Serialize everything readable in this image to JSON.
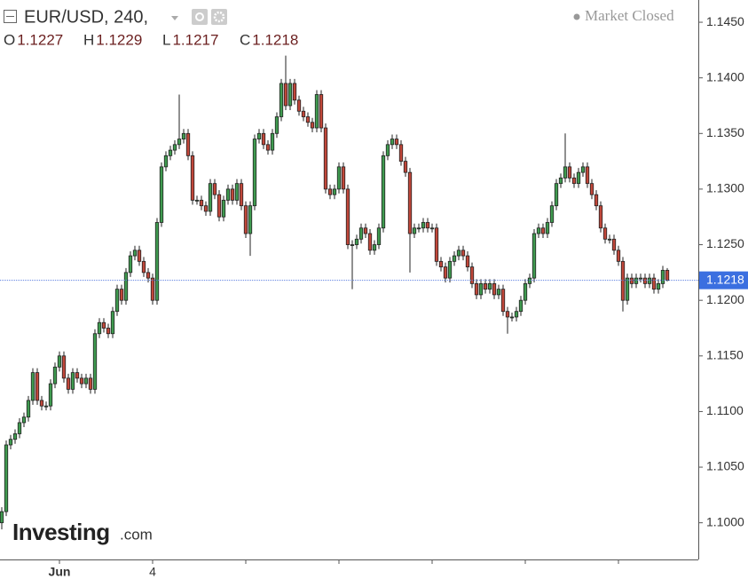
{
  "chart_data": {
    "type": "candlestick",
    "title": "EUR/USD, 240,",
    "status": "Market Closed",
    "brand": "Investing",
    "brand_suffix": ".com",
    "ohlc_labels": [
      "O",
      "H",
      "L",
      "C"
    ],
    "up_color": "#3f9a4f",
    "down_color": "#c0473a",
    "open": [
      1.1,
      1.101,
      1.107,
      1.1075,
      1.108,
      1.109,
      1.1095,
      1.111,
      1.1135,
      1.111,
      1.1105,
      1.1105,
      1.1125,
      1.114,
      1.115,
      1.113,
      1.112,
      1.1135,
      1.113,
      1.1125,
      1.113,
      1.112,
      1.117,
      1.118,
      1.1175,
      1.117,
      1.119,
      1.121,
      1.12,
      1.1225,
      1.124,
      1.1245,
      1.1235,
      1.1225,
      1.122,
      1.12,
      1.127,
      1.132,
      1.133,
      1.1335,
      1.134,
      1.1345,
      1.135,
      1.133,
      1.129,
      1.129,
      1.1285,
      1.128,
      1.1305,
      1.1295,
      1.1275,
      1.129,
      1.13,
      1.129,
      1.1305,
      1.1285,
      1.126,
      1.1285,
      1.1345,
      1.135,
      1.134,
      1.1335,
      1.135,
      1.1365,
      1.1395,
      1.1375,
      1.1395,
      1.138,
      1.137,
      1.1365,
      1.136,
      1.1355,
      1.1385,
      1.1355,
      1.13,
      1.1295,
      1.13,
      1.132,
      1.13,
      1.125,
      1.125,
      1.1255,
      1.1265,
      1.126,
      1.1245,
      1.125,
      1.1265,
      1.133,
      1.134,
      1.1345,
      1.134,
      1.1325,
      1.1315,
      1.126,
      1.1265,
      1.1265,
      1.127,
      1.1265,
      1.1265,
      1.1235,
      1.123,
      1.122,
      1.1235,
      1.124,
      1.1245,
      1.124,
      1.123,
      1.1215,
      1.1205,
      1.1215,
      1.121,
      1.1215,
      1.1205,
      1.121,
      1.119,
      1.1185,
      1.1185,
      1.119,
      1.12,
      1.1215,
      1.122,
      1.126,
      1.1265,
      1.126,
      1.127,
      1.1285,
      1.1305,
      1.131,
      1.132,
      1.131,
      1.1305,
      1.1315,
      1.132,
      1.1305,
      1.1295,
      1.1285,
      1.1265,
      1.1255,
      1.1255,
      1.1245,
      1.1235,
      1.12,
      1.122,
      1.1215,
      1.122,
      1.122,
      1.1215,
      1.122,
      1.121,
      1.1215,
      1.1227
    ],
    "high": [
      1.1014,
      1.1074,
      1.1079,
      1.1084,
      1.1094,
      1.1099,
      1.1114,
      1.1139,
      1.1139,
      1.1114,
      1.1109,
      1.1129,
      1.1144,
      1.1154,
      1.1154,
      1.1134,
      1.1139,
      1.1139,
      1.1134,
      1.1134,
      1.1134,
      1.1174,
      1.1184,
      1.1184,
      1.1179,
      1.1194,
      1.1214,
      1.1214,
      1.1229,
      1.1244,
      1.1249,
      1.1249,
      1.1239,
      1.1229,
      1.1224,
      1.1274,
      1.1324,
      1.1334,
      1.1339,
      1.1344,
      1.1385,
      1.1354,
      1.1354,
      1.1334,
      1.1294,
      1.1294,
      1.1289,
      1.1309,
      1.1309,
      1.1299,
      1.1294,
      1.1304,
      1.1304,
      1.1309,
      1.1309,
      1.1289,
      1.1289,
      1.1349,
      1.1354,
      1.1354,
      1.1344,
      1.1354,
      1.1369,
      1.1399,
      1.142,
      1.1399,
      1.1399,
      1.1384,
      1.1374,
      1.1369,
      1.1364,
      1.1389,
      1.1389,
      1.1359,
      1.1304,
      1.1304,
      1.1324,
      1.1324,
      1.1304,
      1.1254,
      1.1259,
      1.1269,
      1.1269,
      1.1264,
      1.1254,
      1.1269,
      1.1334,
      1.1344,
      1.1349,
      1.1349,
      1.1344,
      1.1329,
      1.1319,
      1.1269,
      1.1269,
      1.1274,
      1.1274,
      1.1269,
      1.1269,
      1.1239,
      1.1234,
      1.1239,
      1.1244,
      1.1249,
      1.1249,
      1.1244,
      1.1234,
      1.1219,
      1.1219,
      1.1219,
      1.1219,
      1.1219,
      1.1214,
      1.1214,
      1.1194,
      1.1189,
      1.1194,
      1.1204,
      1.1219,
      1.1224,
      1.1264,
      1.1269,
      1.1269,
      1.1274,
      1.1289,
      1.1309,
      1.1314,
      1.135,
      1.1324,
      1.1314,
      1.1319,
      1.1324,
      1.1324,
      1.1309,
      1.1299,
      1.1289,
      1.1269,
      1.1259,
      1.1259,
      1.1249,
      1.1239,
      1.1224,
      1.1224,
      1.1224,
      1.1224,
      1.1224,
      1.1224,
      1.1224,
      1.1219,
      1.1231,
      1.1229
    ],
    "low": [
      1.0994,
      1.1006,
      1.1066,
      1.1071,
      1.1076,
      1.1086,
      1.1091,
      1.1106,
      1.1106,
      1.1101,
      1.1101,
      1.1101,
      1.1121,
      1.1136,
      1.1126,
      1.1116,
      1.1116,
      1.1126,
      1.1121,
      1.1121,
      1.1116,
      1.1116,
      1.1166,
      1.1171,
      1.1166,
      1.1166,
      1.1186,
      1.1196,
      1.1196,
      1.1221,
      1.1236,
      1.1231,
      1.1221,
      1.1216,
      1.1196,
      1.1196,
      1.1266,
      1.1316,
      1.1326,
      1.1331,
      1.1336,
      1.1341,
      1.1326,
      1.1286,
      1.1286,
      1.1281,
      1.1276,
      1.1276,
      1.1291,
      1.1271,
      1.1271,
      1.1286,
      1.1286,
      1.1286,
      1.1281,
      1.1256,
      1.124,
      1.1281,
      1.1341,
      1.1336,
      1.1331,
      1.1331,
      1.1346,
      1.1361,
      1.1371,
      1.1371,
      1.1376,
      1.1366,
      1.1361,
      1.1356,
      1.1351,
      1.1351,
      1.1351,
      1.1296,
      1.1291,
      1.1291,
      1.1296,
      1.1296,
      1.1246,
      1.121,
      1.1246,
      1.1251,
      1.1256,
      1.1241,
      1.1241,
      1.1246,
      1.1261,
      1.1326,
      1.1336,
      1.1336,
      1.1321,
      1.1311,
      1.1225,
      1.1256,
      1.1261,
      1.1261,
      1.1261,
      1.1261,
      1.1231,
      1.1226,
      1.1216,
      1.1216,
      1.1231,
      1.1236,
      1.1236,
      1.1226,
      1.1211,
      1.1201,
      1.1201,
      1.1206,
      1.1206,
      1.1201,
      1.1201,
      1.1186,
      1.117,
      1.1181,
      1.1181,
      1.1186,
      1.1196,
      1.1211,
      1.1216,
      1.1256,
      1.1256,
      1.1256,
      1.1266,
      1.1281,
      1.1301,
      1.1306,
      1.1306,
      1.1301,
      1.1301,
      1.1311,
      1.1301,
      1.1291,
      1.1281,
      1.1261,
      1.1251,
      1.1251,
      1.1241,
      1.1231,
      1.119,
      1.1196,
      1.1211,
      1.1211,
      1.1216,
      1.1211,
      1.1211,
      1.1206,
      1.1206,
      1.1211,
      1.1217
    ],
    "close": [
      1.101,
      1.107,
      1.1075,
      1.108,
      1.109,
      1.1095,
      1.111,
      1.1135,
      1.111,
      1.1105,
      1.1105,
      1.1125,
      1.114,
      1.115,
      1.113,
      1.112,
      1.1135,
      1.113,
      1.1125,
      1.113,
      1.112,
      1.117,
      1.118,
      1.1175,
      1.117,
      1.119,
      1.121,
      1.12,
      1.1225,
      1.124,
      1.1245,
      1.1235,
      1.1225,
      1.122,
      1.12,
      1.127,
      1.132,
      1.133,
      1.1335,
      1.134,
      1.1345,
      1.135,
      1.133,
      1.129,
      1.129,
      1.1285,
      1.128,
      1.1305,
      1.1295,
      1.1275,
      1.129,
      1.13,
      1.129,
      1.1305,
      1.1285,
      1.126,
      1.1285,
      1.1345,
      1.135,
      1.134,
      1.1335,
      1.135,
      1.1365,
      1.1395,
      1.1375,
      1.1395,
      1.138,
      1.137,
      1.1365,
      1.136,
      1.1355,
      1.1385,
      1.1355,
      1.13,
      1.1295,
      1.13,
      1.132,
      1.13,
      1.125,
      1.125,
      1.1255,
      1.1265,
      1.126,
      1.1245,
      1.125,
      1.1265,
      1.133,
      1.134,
      1.1345,
      1.134,
      1.1325,
      1.1315,
      1.126,
      1.1265,
      1.1265,
      1.127,
      1.1265,
      1.1265,
      1.1235,
      1.123,
      1.122,
      1.1235,
      1.124,
      1.1245,
      1.124,
      1.123,
      1.1215,
      1.1205,
      1.1215,
      1.121,
      1.1215,
      1.1205,
      1.121,
      1.119,
      1.1185,
      1.1185,
      1.119,
      1.12,
      1.1215,
      1.122,
      1.126,
      1.1265,
      1.126,
      1.127,
      1.1285,
      1.1305,
      1.131,
      1.132,
      1.131,
      1.1305,
      1.1315,
      1.132,
      1.1305,
      1.1295,
      1.1285,
      1.1265,
      1.1255,
      1.1255,
      1.1245,
      1.1235,
      1.12,
      1.122,
      1.1215,
      1.122,
      1.122,
      1.1215,
      1.122,
      1.121,
      1.1215,
      1.1227,
      1.1218
    ],
    "xlim": [
      -0.4,
      157
    ],
    "xticks": [
      {
        "value": 13,
        "label": "Jun"
      },
      {
        "value": 34,
        "label": "4"
      },
      {
        "value": 55,
        "label": null
      },
      {
        "value": 76,
        "label": null
      },
      {
        "value": 97,
        "label": null
      },
      {
        "value": 118,
        "label": null
      },
      {
        "value": 139,
        "label": null
      }
    ],
    "ylim": [
      1.0967,
      1.147
    ],
    "yticks": [
      {
        "value": 1.1,
        "label": "1.1000"
      },
      {
        "value": 1.105,
        "label": "1.1050"
      },
      {
        "value": 1.11,
        "label": "1.1100"
      },
      {
        "value": 1.115,
        "label": "1.1150"
      },
      {
        "value": 1.12,
        "label": "1.1200"
      },
      {
        "value": 1.125,
        "label": "1.1250"
      },
      {
        "value": 1.13,
        "label": "1.1300"
      },
      {
        "value": 1.135,
        "label": "1.1350"
      },
      {
        "value": 1.14,
        "label": "1.1400"
      },
      {
        "value": 1.145,
        "label": "1.1450"
      }
    ]
  }
}
